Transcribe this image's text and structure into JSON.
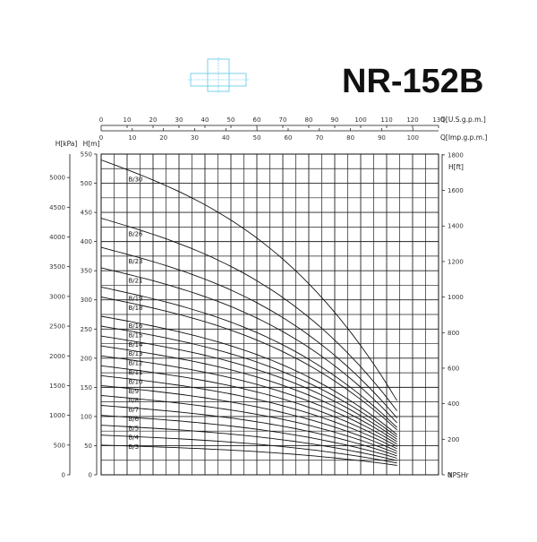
{
  "header": {
    "model_title": "NR-152B",
    "logo_icon": "pump-fitting-icon",
    "logo_color": "#5bc6e8"
  },
  "chart_data": {
    "type": "line",
    "title": "",
    "x_top_primary": {
      "label": "Q[U.S.g.p.m.]",
      "ticks": [
        0,
        10,
        20,
        30,
        40,
        50,
        60,
        70,
        80,
        90,
        100,
        110,
        120,
        130
      ],
      "range": [
        0,
        130
      ]
    },
    "x_top_secondary": {
      "label": "Q[Imp.g.p.m.]",
      "ticks": [
        0,
        10,
        20,
        30,
        40,
        50,
        60,
        70,
        80,
        90,
        100
      ],
      "range": [
        0,
        108.25
      ]
    },
    "y_left_m": {
      "label": "H[m]",
      "ticks": [
        0,
        50,
        100,
        150,
        200,
        250,
        300,
        350,
        400,
        450,
        500,
        550
      ],
      "range": [
        0,
        550
      ]
    },
    "y_left_kpa": {
      "label": "H[kPa]",
      "ticks": [
        0,
        500,
        1000,
        1500,
        2000,
        2500,
        3000,
        3500,
        4000,
        4500,
        5000
      ]
    },
    "y_right_ft": {
      "label": "H[ft]",
      "ticks": [
        0,
        200,
        400,
        600,
        800,
        1000,
        1200,
        1400,
        1600,
        1800
      ]
    },
    "npsh_label": "NPSHr",
    "grid": true,
    "flow_range_usgpm": [
      0,
      114
    ],
    "series": [
      {
        "name": "B/30",
        "shutoff_head_m": 540,
        "end_head_m": 125
      },
      {
        "name": "B/26",
        "shutoff_head_m": 440,
        "end_head_m": 108
      },
      {
        "name": "B/23",
        "shutoff_head_m": 390,
        "end_head_m": 96
      },
      {
        "name": "B/21",
        "shutoff_head_m": 355,
        "end_head_m": 88
      },
      {
        "name": "B/19",
        "shutoff_head_m": 322,
        "end_head_m": 80
      },
      {
        "name": "B/18",
        "shutoff_head_m": 305,
        "end_head_m": 76
      },
      {
        "name": "B/16",
        "shutoff_head_m": 272,
        "end_head_m": 68
      },
      {
        "name": "B/15",
        "shutoff_head_m": 255,
        "end_head_m": 64
      },
      {
        "name": "B/14",
        "shutoff_head_m": 238,
        "end_head_m": 60
      },
      {
        "name": "B/13",
        "shutoff_head_m": 221,
        "end_head_m": 56
      },
      {
        "name": "B/12",
        "shutoff_head_m": 204,
        "end_head_m": 52
      },
      {
        "name": "B/11",
        "shutoff_head_m": 187,
        "end_head_m": 48
      },
      {
        "name": "B/10",
        "shutoff_head_m": 170,
        "end_head_m": 44
      },
      {
        "name": "B/9",
        "shutoff_head_m": 153,
        "end_head_m": 40
      },
      {
        "name": "B/8",
        "shutoff_head_m": 136,
        "end_head_m": 36
      },
      {
        "name": "B/7",
        "shutoff_head_m": 119,
        "end_head_m": 32
      },
      {
        "name": "B/6",
        "shutoff_head_m": 102,
        "end_head_m": 28
      },
      {
        "name": "B/5",
        "shutoff_head_m": 85,
        "end_head_m": 24
      },
      {
        "name": "B/4",
        "shutoff_head_m": 68,
        "end_head_m": 20
      },
      {
        "name": "B/3",
        "shutoff_head_m": 51,
        "end_head_m": 16
      }
    ]
  }
}
